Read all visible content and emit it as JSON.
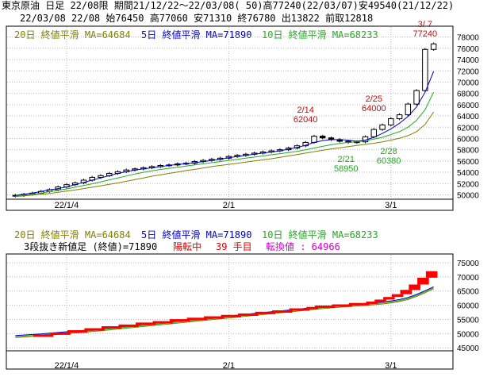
{
  "header": {
    "line1": "東京原油 日足 22/08限 期間21/12/22～22/03/08( 50)高77240(22/03/07)安49540(21/12/22)",
    "line2": "22/03/08 22/08 始76450 高77060 安71310 終76780 出13822 前取12818"
  },
  "colors": {
    "frame": "#000000",
    "grid": "#b8b8b8",
    "ma5": "#0000cc",
    "ma10": "#22aa22",
    "ma20": "#808000",
    "brick": "#ff0000",
    "annot": "#dd0000",
    "annot2": "#22aa22",
    "magenta": "#cc00cc"
  },
  "chart_data": [
    {
      "type": "candlestick",
      "legend": {
        "ma20": "20日 終値平滑 MA=64684",
        "ma5": "5日 終値平滑 MA=71890",
        "ma10": "10日 終値平滑 MA=68233"
      },
      "ylim": [
        49500,
        79500
      ],
      "yticks": [
        50000,
        52000,
        54000,
        56000,
        58000,
        60000,
        62000,
        64000,
        66000,
        68000,
        70000,
        72000,
        74000,
        76000,
        78000
      ],
      "xticks": [
        {
          "label": "22/1/4",
          "index": 6
        },
        {
          "label": "2/1",
          "index": 25
        },
        {
          "label": "3/1",
          "index": 44
        }
      ],
      "n": 50,
      "annotations": [
        {
          "date": "2/14",
          "price": "62040",
          "idx": 34,
          "val": 62040,
          "pos": "above",
          "color": "annot"
        },
        {
          "date": "2/25",
          "price": "64000",
          "idx": 42,
          "val": 64000,
          "pos": "above",
          "color": "annot"
        },
        {
          "date": "3/ 7",
          "price": "77240",
          "idx": 48,
          "val": 77240,
          "pos": "above",
          "color": "annot"
        },
        {
          "date": "2/21",
          "price": "58950",
          "idx": 38,
          "val": 58950,
          "pos": "below",
          "color": "annot2"
        },
        {
          "date": "2/28",
          "price": "60380",
          "idx": 43,
          "val": 60380,
          "pos": "below",
          "color": "annot2"
        }
      ],
      "close": [
        49900,
        50100,
        50300,
        50600,
        50900,
        51400,
        51800,
        52100,
        52600,
        53100,
        53400,
        53800,
        54100,
        54400,
        54600,
        54800,
        55000,
        55200,
        55300,
        55500,
        55600,
        55900,
        56100,
        56300,
        56500,
        56800,
        57000,
        57200,
        57400,
        57600,
        57800,
        58000,
        58300,
        58700,
        59300,
        60400,
        60100,
        59800,
        59500,
        59300,
        59400,
        60300,
        61600,
        62400,
        63500,
        64200,
        66100,
        68500,
        75800,
        76780
      ],
      "ma5": [
        49900,
        50100,
        50300,
        50600,
        50900,
        51100,
        51400,
        51800,
        52200,
        52600,
        53000,
        53400,
        53800,
        54100,
        54400,
        54600,
        54800,
        55000,
        55200,
        55400,
        55500,
        55700,
        55900,
        56100,
        56300,
        56600,
        56800,
        57000,
        57200,
        57400,
        57600,
        57800,
        58100,
        58400,
        58800,
        59300,
        59600,
        59800,
        59800,
        59700,
        59500,
        59700,
        60200,
        60900,
        61700,
        62700,
        63900,
        65600,
        68200,
        71890
      ],
      "ma10": [
        49800,
        49950,
        50100,
        50300,
        50550,
        50800,
        51050,
        51350,
        51650,
        51950,
        52300,
        52650,
        53000,
        53350,
        53700,
        54000,
        54250,
        54500,
        54700,
        54900,
        55100,
        55300,
        55500,
        55700,
        55900,
        56100,
        56300,
        56500,
        56700,
        56900,
        57100,
        57300,
        57500,
        57700,
        58000,
        58300,
        58600,
        58900,
        59100,
        59300,
        59400,
        59600,
        59900,
        60200,
        60700,
        61200,
        62000,
        63200,
        65100,
        68233
      ],
      "ma20": [
        49700,
        49800,
        49950,
        50100,
        50250,
        50450,
        50650,
        50850,
        51100,
        51350,
        51600,
        51850,
        52100,
        52400,
        52700,
        53000,
        53300,
        53550,
        53800,
        54050,
        54300,
        54500,
        54750,
        55000,
        55200,
        55400,
        55600,
        55800,
        56000,
        56200,
        56400,
        56650,
        56900,
        57150,
        57400,
        57650,
        57900,
        58150,
        58350,
        58550,
        58750,
        58950,
        59150,
        59400,
        59700,
        60050,
        60500,
        61200,
        62500,
        64684
      ]
    },
    {
      "type": "three-line-break",
      "legend": {
        "ma20": "20日 終値平滑 MA=64684",
        "ma5": "5日 終値平滑 MA=71890",
        "ma10": "10日 終値平滑 MA=68233"
      },
      "info": {
        "name": "3段抜き新値足 (終値)=71890",
        "state": "陽転中",
        "count": "39 手目",
        "reversal": "転換値 : 64966"
      },
      "ylim": [
        44500,
        77500
      ],
      "yticks": [
        45000,
        50000,
        55000,
        60000,
        65000,
        70000,
        75000
      ],
      "xticks": [
        {
          "label": "22/1/4",
          "index": 6
        },
        {
          "label": "2/1",
          "index": 25
        },
        {
          "label": "3/1",
          "index": 44
        }
      ],
      "n": 50,
      "bricks": [
        [
          4,
          49000,
          49700
        ],
        [
          6,
          49700,
          50400
        ],
        [
          8,
          50400,
          51200
        ],
        [
          10,
          51200,
          51900
        ],
        [
          12,
          51900,
          52600
        ],
        [
          14,
          52600,
          53200
        ],
        [
          16,
          53200,
          53900
        ],
        [
          18,
          53900,
          54400
        ],
        [
          20,
          54400,
          55100
        ],
        [
          22,
          55100,
          55600
        ],
        [
          24,
          55600,
          56100
        ],
        [
          26,
          56100,
          56600
        ],
        [
          28,
          56600,
          57100
        ],
        [
          30,
          57100,
          57700
        ],
        [
          32,
          57700,
          58200
        ],
        [
          34,
          58200,
          58900
        ],
        [
          35,
          58900,
          59400
        ],
        [
          37,
          59400,
          59900
        ],
        [
          39,
          59900,
          60300
        ],
        [
          41,
          60300,
          60800
        ],
        [
          42,
          60800,
          61300
        ],
        [
          43,
          61300,
          62000
        ],
        [
          44,
          62000,
          62900
        ],
        [
          45,
          62900,
          63900
        ],
        [
          46,
          63900,
          65400
        ],
        [
          47,
          65400,
          67300
        ],
        [
          48,
          67300,
          69700
        ],
        [
          49,
          69700,
          72000
        ]
      ],
      "ma": [
        48600,
        48800,
        49000,
        49200,
        49450,
        49700,
        49950,
        50200,
        50450,
        50700,
        51000,
        51300,
        51600,
        51900,
        52200,
        52500,
        52800,
        53100,
        53400,
        53700,
        54000,
        54300,
        54600,
        54900,
        55200,
        55500,
        55800,
        56100,
        56400,
        56700,
        57000,
        57300,
        57600,
        57900,
        58200,
        58500,
        58800,
        59050,
        59300,
        59500,
        59700,
        59900,
        60150,
        60450,
        60800,
        61300,
        62000,
        63100,
        64400,
        65800
      ]
    }
  ],
  "axis_labels": {
    "x1": "22/1/4",
    "x2": "2/1",
    "x3": "3/1"
  }
}
